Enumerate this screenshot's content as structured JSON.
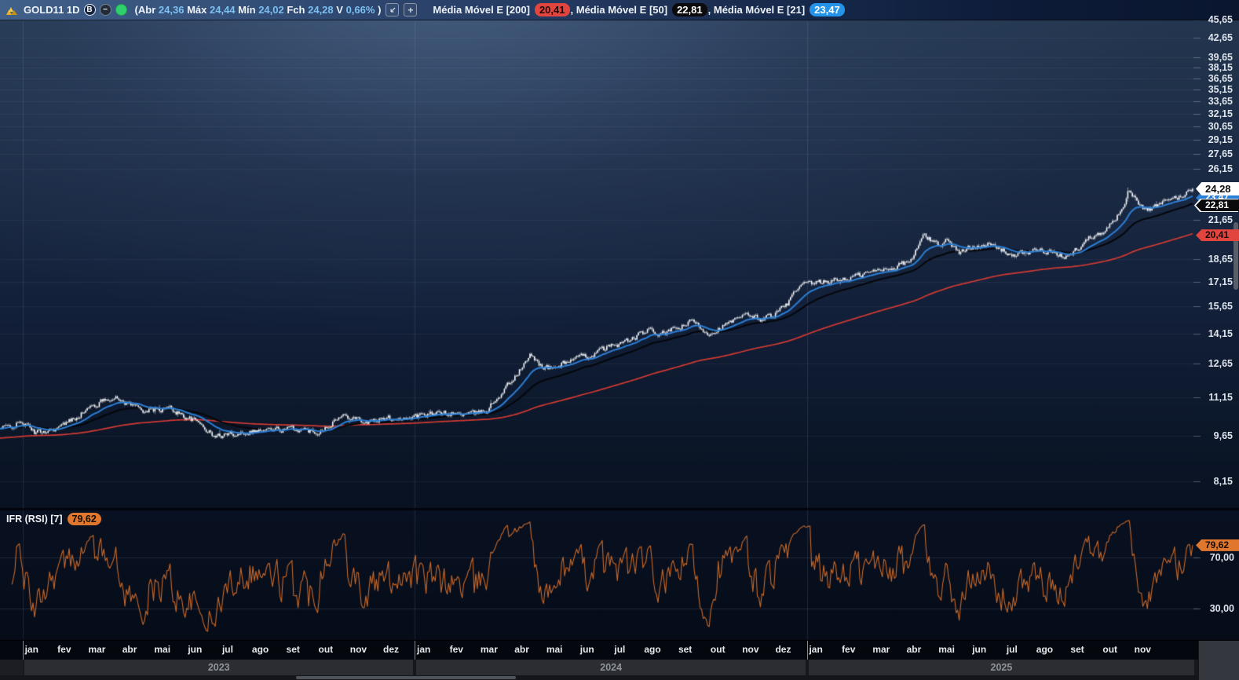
{
  "topbar": {
    "symbol": "GOLD11",
    "timeframe": "1D",
    "ohlc": {
      "prefix": "(",
      "suffix": " )",
      "open_label": "Abr",
      "open": "24,36",
      "high_label": "Máx",
      "high": "24,44",
      "low_label": "Mín",
      "low": "24,02",
      "close_label": "Fch",
      "close": "24,28",
      "var_label": "V",
      "var": "0,66%"
    },
    "legend_separator": ",",
    "legend": [
      {
        "label": "Média Móvel E [200]",
        "value": "20,41",
        "badge_bg": "#e2453d",
        "badge_fg": "#1c0808"
      },
      {
        "label": "Média Móvel E [50]",
        "value": "22,81",
        "badge_bg": "#0b0b0d",
        "badge_fg": "#ffffff"
      },
      {
        "label": "Média Móvel E [21]",
        "value": "23,47",
        "badge_bg": "#2493e8",
        "badge_fg": "#ffffff"
      }
    ]
  },
  "price_axis": {
    "ticks": [
      {
        "label": "45,65",
        "value": 45.65
      },
      {
        "label": "42,65",
        "value": 42.65
      },
      {
        "label": "39,65",
        "value": 39.65
      },
      {
        "label": "38,15",
        "value": 38.15
      },
      {
        "label": "36,65",
        "value": 36.65
      },
      {
        "label": "35,15",
        "value": 35.15
      },
      {
        "label": "33,65",
        "value": 33.65
      },
      {
        "label": "32,15",
        "value": 32.15
      },
      {
        "label": "30,65",
        "value": 30.65
      },
      {
        "label": "29,15",
        "value": 29.15
      },
      {
        "label": "27,65",
        "value": 27.65
      },
      {
        "label": "26,15",
        "value": 26.15
      },
      {
        "label": "21,65",
        "value": 21.65
      },
      {
        "label": "18,65",
        "value": 18.65
      },
      {
        "label": "17,15",
        "value": 17.15
      },
      {
        "label": "15,65",
        "value": 15.65
      },
      {
        "label": "14,15",
        "value": 14.15
      },
      {
        "label": "12,65",
        "value": 12.65
      },
      {
        "label": "11,15",
        "value": 11.15
      },
      {
        "label": "9,65",
        "value": 9.65
      },
      {
        "label": "8,15",
        "value": 8.15
      }
    ],
    "badges": [
      {
        "name": "price-badge-last",
        "label": "24,28",
        "price": 24.28,
        "bg": "#ffffff",
        "fg": "#0b0b0b",
        "big": true
      },
      {
        "name": "price-badge-ma21",
        "label": "23,47",
        "price": 23.47,
        "bg": "#2b7fd6",
        "fg": "#ffffff"
      },
      {
        "name": "price-badge-ma50",
        "label": "22,81",
        "price": 22.81,
        "bg": "#0a0a0c",
        "fg": "#ffffff",
        "border": "#ffffff"
      },
      {
        "name": "price-badge-ma200",
        "label": "20,41",
        "price": 20.41,
        "bg": "#e2453d",
        "fg": "#16090a"
      }
    ]
  },
  "rsi": {
    "label": "IFR (RSI) [7]",
    "badge": {
      "label": "79,62",
      "value": 79.62,
      "bg": "#e0772e",
      "fg": "#190d02"
    },
    "levels": [
      {
        "label": "70,00",
        "value": 70
      },
      {
        "label": "30,00",
        "value": 30
      }
    ]
  },
  "x_axis": {
    "years": [
      {
        "label": "2023",
        "months": [
          "jan",
          "fev",
          "mar",
          "abr",
          "mai",
          "jun",
          "jul",
          "ago",
          "set",
          "out",
          "nov",
          "dez"
        ]
      },
      {
        "label": "2024",
        "months": [
          "jan",
          "fev",
          "mar",
          "abr",
          "mai",
          "jun",
          "jul",
          "ago",
          "set",
          "out",
          "nov",
          "dez"
        ]
      },
      {
        "label": "2025",
        "months": [
          "jan",
          "fev",
          "mar",
          "abr",
          "mai",
          "jun",
          "jul",
          "ago",
          "set",
          "out",
          "nov"
        ]
      }
    ]
  },
  "chart_data": [
    {
      "type": "candlestick",
      "title": "GOLD11 1D",
      "y_scale": "log",
      "y_ticks": [
        45.65,
        42.65,
        39.65,
        38.15,
        36.65,
        35.15,
        33.65,
        32.15,
        30.65,
        29.15,
        27.65,
        26.15,
        21.65,
        18.65,
        17.15,
        15.65,
        14.15,
        12.65,
        11.15,
        9.65,
        8.15
      ],
      "x_years": [
        "2023",
        "2024",
        "2025"
      ],
      "last": {
        "open": 24.36,
        "high": 24.44,
        "low": 24.02,
        "close": 24.28,
        "change_pct": 0.66
      },
      "candle_color": "#f4f6f8",
      "price_anchors": [
        [
          -0.7,
          9.9
        ],
        [
          0.0,
          10.15
        ],
        [
          0.4,
          9.75
        ],
        [
          1.2,
          10.0
        ],
        [
          1.9,
          10.6
        ],
        [
          2.7,
          11.18
        ],
        [
          2.95,
          11.05
        ],
        [
          3.8,
          10.6
        ],
        [
          4.5,
          10.7
        ],
        [
          5.5,
          10.05
        ],
        [
          5.85,
          9.62
        ],
        [
          6.6,
          9.78
        ],
        [
          7.3,
          9.87
        ],
        [
          8.4,
          9.9
        ],
        [
          9.0,
          9.8
        ],
        [
          9.75,
          10.38
        ],
        [
          10.1,
          10.42
        ],
        [
          10.5,
          10.15
        ],
        [
          11.2,
          10.3
        ],
        [
          12.0,
          10.38
        ],
        [
          12.9,
          10.5
        ],
        [
          13.8,
          10.47
        ],
        [
          14.2,
          10.63
        ],
        [
          14.8,
          11.6
        ],
        [
          15.15,
          12.2
        ],
        [
          15.55,
          13.05
        ],
        [
          15.9,
          12.5
        ],
        [
          16.2,
          12.4
        ],
        [
          16.7,
          12.8
        ],
        [
          17.3,
          13.0
        ],
        [
          18.0,
          13.5
        ],
        [
          18.6,
          13.8
        ],
        [
          19.1,
          14.3
        ],
        [
          19.55,
          14.1
        ],
        [
          20.0,
          14.4
        ],
        [
          20.5,
          14.8
        ],
        [
          20.98,
          14.15
        ],
        [
          21.45,
          14.56
        ],
        [
          21.93,
          14.95
        ],
        [
          22.29,
          15.2
        ],
        [
          22.52,
          14.9
        ],
        [
          23.0,
          15.2
        ],
        [
          23.36,
          15.7
        ],
        [
          23.6,
          16.4
        ],
        [
          23.83,
          16.9
        ],
        [
          24.56,
          17.15
        ],
        [
          25.28,
          17.4
        ],
        [
          26.0,
          17.8
        ],
        [
          26.74,
          18.2
        ],
        [
          27.2,
          18.6
        ],
        [
          27.58,
          20.5
        ],
        [
          27.8,
          20.0
        ],
        [
          28.07,
          19.7
        ],
        [
          28.31,
          20.1
        ],
        [
          28.67,
          19.05
        ],
        [
          29.04,
          19.6
        ],
        [
          29.4,
          19.8
        ],
        [
          29.76,
          19.5
        ],
        [
          30.12,
          19.2
        ],
        [
          30.37,
          18.85
        ],
        [
          30.73,
          19.2
        ],
        [
          31.09,
          19.3
        ],
        [
          31.46,
          19.1
        ],
        [
          31.82,
          18.85
        ],
        [
          32.06,
          18.95
        ],
        [
          32.3,
          19.5
        ],
        [
          32.67,
          20.3
        ],
        [
          32.91,
          20.6
        ],
        [
          33.15,
          20.9
        ],
        [
          33.39,
          21.5
        ],
        [
          33.63,
          22.6
        ],
        [
          33.88,
          24.35
        ],
        [
          34.12,
          22.9
        ],
        [
          34.36,
          22.4
        ],
        [
          34.6,
          22.6
        ],
        [
          34.85,
          22.9
        ],
        [
          35.09,
          23.3
        ],
        [
          35.33,
          23.5
        ],
        [
          35.57,
          23.8
        ],
        [
          35.8,
          24.28
        ]
      ],
      "overlays": [
        {
          "name": "Média Móvel E [200]",
          "type": "ema",
          "period": 200,
          "color": "#d23a33",
          "width": 1.7,
          "last": 20.41
        },
        {
          "name": "Média Móvel E [50]",
          "type": "ema",
          "period": 50,
          "color": "#05070a",
          "width": 2.0,
          "last": 22.81
        },
        {
          "name": "Média Móvel E [21]",
          "type": "ema",
          "period": 21,
          "color": "#2b7fd6",
          "width": 2.0,
          "last": 23.47
        }
      ]
    },
    {
      "type": "line",
      "name": "IFR (RSI) [7]",
      "period": 7,
      "last": 79.62,
      "levels": [
        70,
        30
      ],
      "color": "#c9692a",
      "y_range": [
        0,
        100
      ]
    }
  ]
}
